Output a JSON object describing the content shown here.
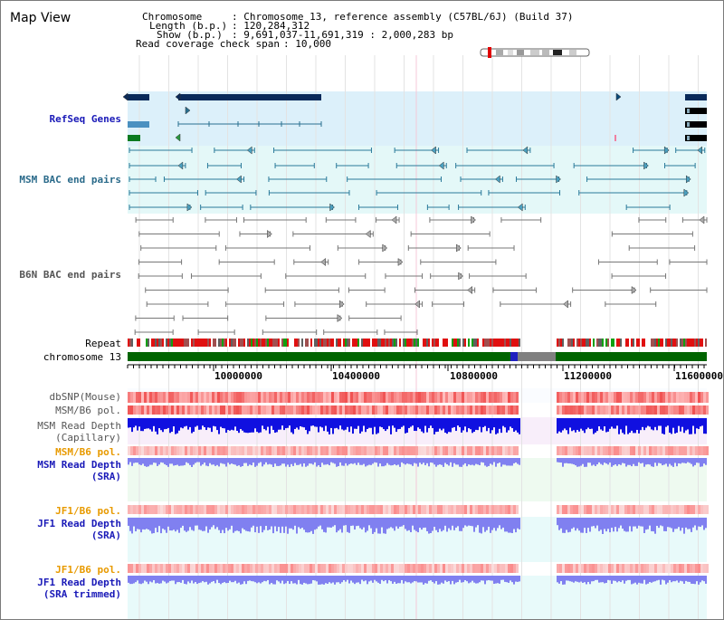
{
  "header": {
    "title": "Map View",
    "chromosome_key": "Chromosome",
    "chromosome_value": ": Chromosome 13, reference assembly (C57BL/6J) (Build 37)",
    "length_key": "Length (b.p.)",
    "length_value": ": 120,284,312",
    "show_key": "Show (b.p.)",
    "show_value": ": 9,691,037-11,691,319 : 2,000,283 bp",
    "span_key": "Read coverage check span",
    "span_value": ": 10,000"
  },
  "tracks": {
    "refseq": "RefSeq Genes",
    "msm_bac": "MSM BAC end pairs",
    "b6n_bac": "B6N BAC end pairs",
    "repeat": "Repeat",
    "chromosome": "chromosome 13",
    "dbsnp": "dbSNP(Mouse)",
    "msm_b6_pol_1": "MSM/B6 pol.",
    "msm_read_depth_cap": "MSM Read Depth\n(Capillary)",
    "msm_b6_pol_2": "MSM/B6 pol.",
    "msm_read_depth_sra": "MSM Read Depth\n(SRA)",
    "jf1_b6_pol_1": "JF1/B6 pol.",
    "jf1_read_depth_sra": "JF1 Read Depth\n(SRA)",
    "jf1_b6_pol_2": "JF1/B6 pol.",
    "jf1_read_depth_trim": "JF1 Read Depth\n(SRA trimmed)"
  },
  "axis": {
    "ticks": [
      "10000000",
      "10400000",
      "10800000",
      "11200000",
      "11600000"
    ]
  },
  "colors": {
    "refseq_label": "#1a1ab8",
    "msm_label": "#2a6a8a",
    "b6n_label": "#555555",
    "orange_label": "#e89a00",
    "blue_label": "#1a1ab8",
    "refseq_band": "#dcf0fa",
    "msm_band": "#e4f8f8",
    "chrom_green": "#006400",
    "snp_red": "#f45050",
    "depth_blue": "#1010e0",
    "depth_light": "#8080f0"
  }
}
